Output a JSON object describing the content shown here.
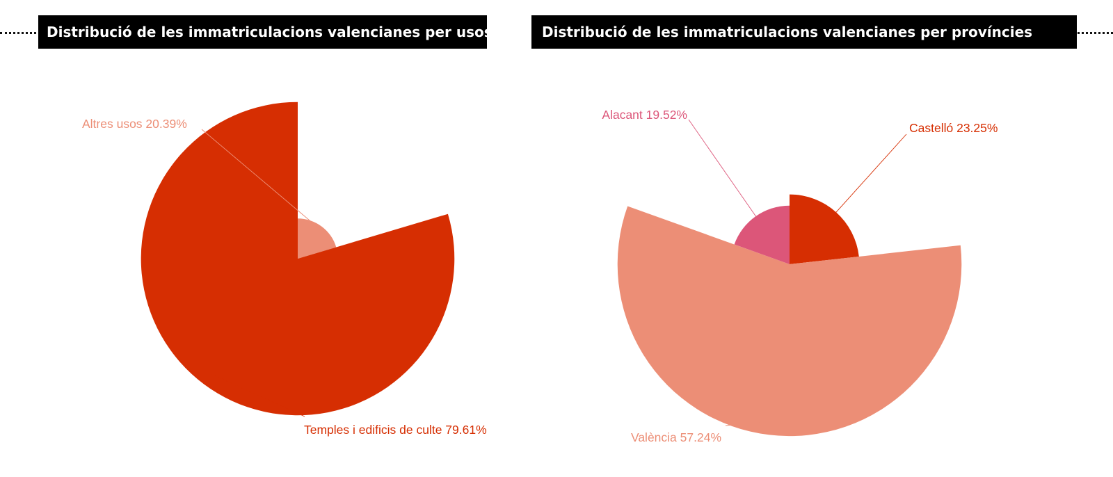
{
  "colors": {
    "dark_red": "#d62e02",
    "salmon": "#ec8e76",
    "pink": "#dc5679",
    "title_bg": "#000000",
    "title_text": "#ffffff"
  },
  "chart_data": [
    {
      "type": "pie",
      "variant": "polar-area (radius scaled by value)",
      "title": "Distribució de les immatriculacions valencianes  per usos",
      "slices": [
        {
          "label": "Altres usos",
          "value": 20.39,
          "display": "Altres usos 20.39%",
          "color": "#ec8e76"
        },
        {
          "label": "Temples i edificis de culte",
          "value": 79.61,
          "display": "Temples i edificis de culte 79.61%",
          "color": "#d62e02"
        }
      ]
    },
    {
      "type": "pie",
      "variant": "polar-area (radius scaled by value)",
      "title": "Distribució de les immatriculacions valencianes  per províncies",
      "slices": [
        {
          "label": "Castelló",
          "value": 23.25,
          "display": "Castelló 23.25%",
          "color": "#d62e02"
        },
        {
          "label": "València",
          "value": 57.24,
          "display": "València 57.24%",
          "color": "#ec8e76"
        },
        {
          "label": "Alacant",
          "value": 19.52,
          "display": "Alacant 19.52%",
          "color": "#dc5679"
        }
      ]
    }
  ]
}
